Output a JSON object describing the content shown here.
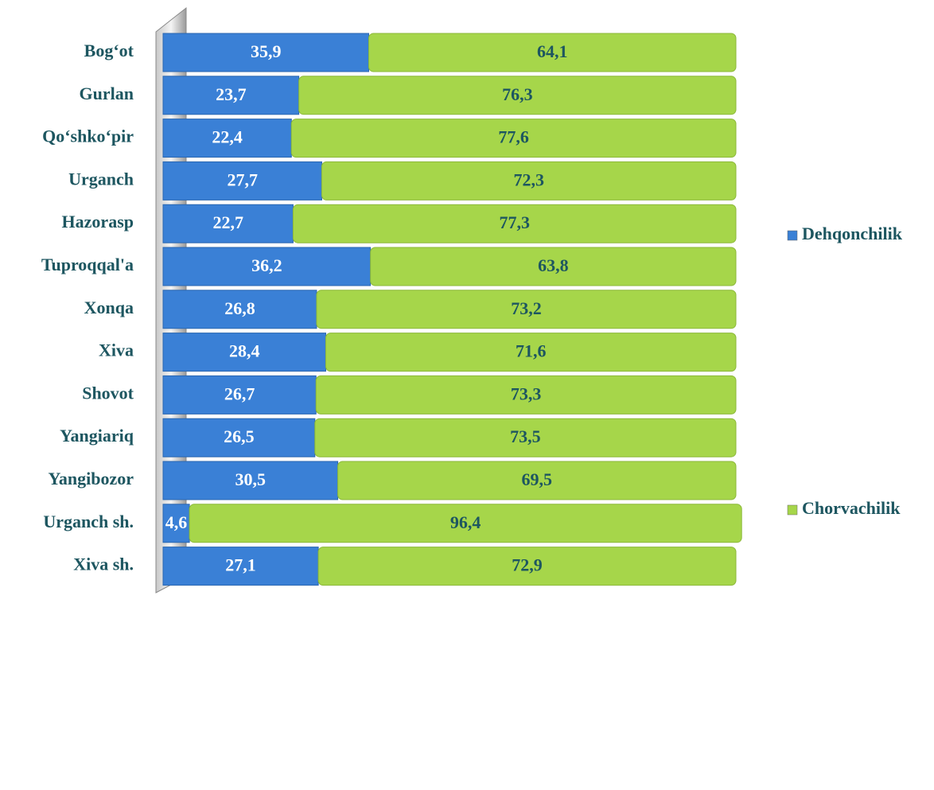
{
  "chart_data": {
    "type": "stacked_bar_horizontal",
    "categories": [
      "Bog‘ot",
      "Gurlan",
      "Qo‘shko‘pir",
      "Urganch",
      "Hazorasp",
      "Tuproqqal'a",
      "Xonqa",
      "Xiva",
      "Shovot",
      "Yangiariq",
      "Yangibozor",
      "Urganch sh.",
      "Xiva sh."
    ],
    "series": [
      {
        "name": "Dehqonchilik",
        "color": "#3a80d6",
        "values": [
          35.9,
          23.7,
          22.4,
          27.7,
          22.7,
          36.2,
          26.8,
          28.4,
          26.7,
          26.5,
          30.5,
          4.6,
          27.1
        ],
        "value_labels": [
          "35,9",
          "23,7",
          "22,4",
          "27,7",
          "22,7",
          "36,2",
          "26,8",
          "28,4",
          "26,7",
          "26,5",
          "30,5",
          "4,6",
          "27,1"
        ]
      },
      {
        "name": "Chorvachilik",
        "color": "#a6d64a",
        "values": [
          64.1,
          76.3,
          77.6,
          72.3,
          77.3,
          63.8,
          73.2,
          71.6,
          73.3,
          73.5,
          69.5,
          96.4,
          72.9
        ],
        "value_labels": [
          "64,1",
          "76,3",
          "77,6",
          "72,3",
          "77,3",
          "63,8",
          "73,2",
          "71,6",
          "73,3",
          "73,5",
          "69,5",
          "96,4",
          "72,9"
        ]
      }
    ],
    "xlim": [
      0,
      100
    ]
  }
}
